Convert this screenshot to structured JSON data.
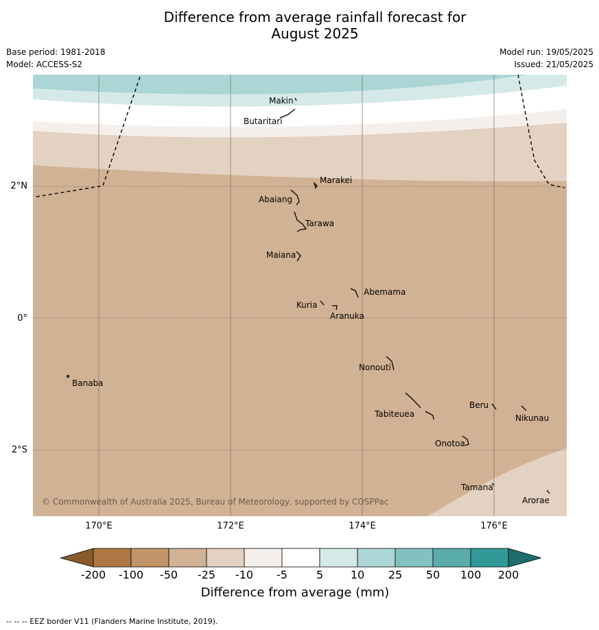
{
  "title_line1": "Difference from average rainfall forecast for",
  "title_line2": "August 2025",
  "meta_left": [
    "Base period: 1981-2018",
    "Model: ACCESS-S2"
  ],
  "meta_right": [
    "Model run: 19/05/2025",
    "Issued: 21/05/2025"
  ],
  "copyright": "© Commonwealth of Australia 2025, Bureau of Meteorology, supported by COSPPac",
  "lat_labels": [
    "2°N",
    "0°",
    "2°S"
  ],
  "lon_labels": [
    "170°E",
    "172°E",
    "174°E",
    "176°E"
  ],
  "islands": [
    "Makin",
    "Butaritari",
    "Marakei",
    "Abaiang",
    "Tarawa",
    "Maiana",
    "Abemama",
    "Kuria",
    "Aranuka",
    "Nonouti",
    "Banaba",
    "Beru",
    "Tabiteuea",
    "Nikunau",
    "Onotoa",
    "Tamana",
    "Arorae"
  ],
  "colorbar": {
    "ticks": [
      "-200",
      "-100",
      "-50",
      "-25",
      "-10",
      "-5",
      "5",
      "10",
      "25",
      "50",
      "100",
      "200"
    ],
    "colors": [
      "#af7743",
      "#c29468",
      "#d2b294",
      "#e3d1c1",
      "#f5efeb",
      "#ffffff",
      "#d6e9e9",
      "#acd5d5",
      "#82c1c0",
      "#5aadac",
      "#319a99",
      "#1f6d6c",
      "#8a5a2b"
    ],
    "title": "Difference from average (mm)"
  },
  "footnote": "--  --  -- EEZ border V11 (Flanders Marine Institute, 2019)."
}
